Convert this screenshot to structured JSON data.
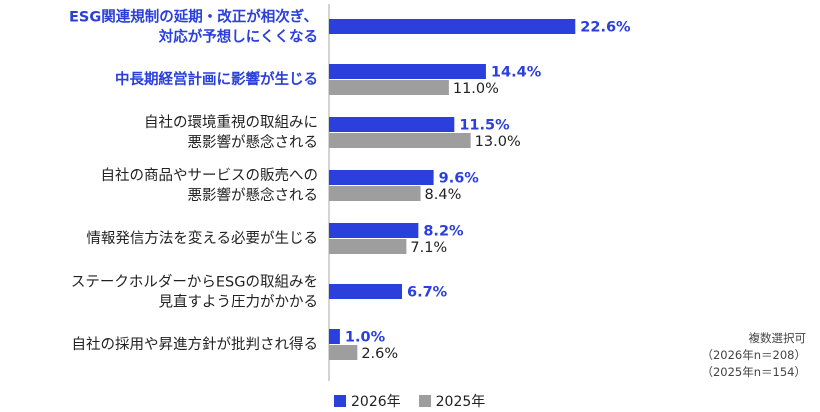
{
  "chart_data": {
    "type": "bar",
    "orientation": "horizontal",
    "categories": [
      [
        "ESG関連規制の延期・改正が相次ぎ、",
        "対応が予想しにくくなる"
      ],
      [
        "中長期経営計画に影響が生じる"
      ],
      [
        "自社の環境重視の取組みに",
        "悪影響が懸念される"
      ],
      [
        "自社の商品やサービスの販売への",
        "悪影響が懸念される"
      ],
      [
        "情報発信方法を変える必要が生じる"
      ],
      [
        "ステークホルダーからESGの取組みを",
        "見直すよう圧力がかかる"
      ],
      [
        "自社の採用や昇進方針が批判され得る"
      ]
    ],
    "highlighted_categories": [
      0,
      1
    ],
    "series": [
      {
        "name": "2026年",
        "color": "#2a3fdc",
        "values": [
          22.6,
          14.4,
          11.5,
          9.6,
          8.2,
          6.7,
          1.0
        ],
        "labels": [
          "22.6%",
          "14.4%",
          "11.5%",
          "9.6%",
          "8.2%",
          "6.7%",
          "1.0%"
        ]
      },
      {
        "name": "2025年",
        "color": "#9e9e9e",
        "values": [
          null,
          11.0,
          13.0,
          8.4,
          7.1,
          null,
          2.6
        ],
        "labels": [
          null,
          "11.0%",
          "13.0%",
          "8.4%",
          "7.1%",
          null,
          "2.6%"
        ]
      }
    ],
    "xlim": [
      0,
      23.4
    ],
    "legend_position": "bottom-left",
    "grid": false
  },
  "note": {
    "line1": "複数選択可",
    "line2": "（2026年n＝208）",
    "line3": "（2025年n＝154）"
  },
  "legend": {
    "label_2026": "2026年",
    "label_2025": "2025年"
  }
}
